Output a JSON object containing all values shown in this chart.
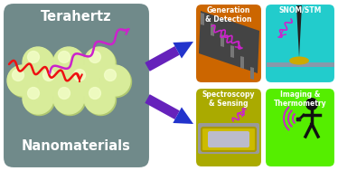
{
  "fig_w": 3.74,
  "fig_h": 1.89,
  "dpi": 100,
  "left_panel_bg": "#708a8a",
  "left_panel_text_color": "white",
  "left_title": "Terahertz",
  "left_subtitle": "Nanomaterials",
  "ball_color": "#d8ec9a",
  "ball_shadow": "#b0c870",
  "ball_highlight": "#f5ffcc",
  "arrow_color1": "#5500aa",
  "arrow_color2": "#2200dd",
  "panel_tl_bg": "#cc6600",
  "panel_tl_text": "Generation\n& Detection",
  "panel_tr_bg": "#22cccc",
  "panel_tr_text": "SNOM/STM",
  "panel_bl_bg": "#aaaa00",
  "panel_bl_text": "Spectroscopy\n& Sensing",
  "panel_br_bg": "#55ee00",
  "panel_br_text": "Imaging &\nThermometry",
  "wave_red": "#ee1111",
  "wave_magenta": "#cc22cc",
  "panel_text_color": "white"
}
